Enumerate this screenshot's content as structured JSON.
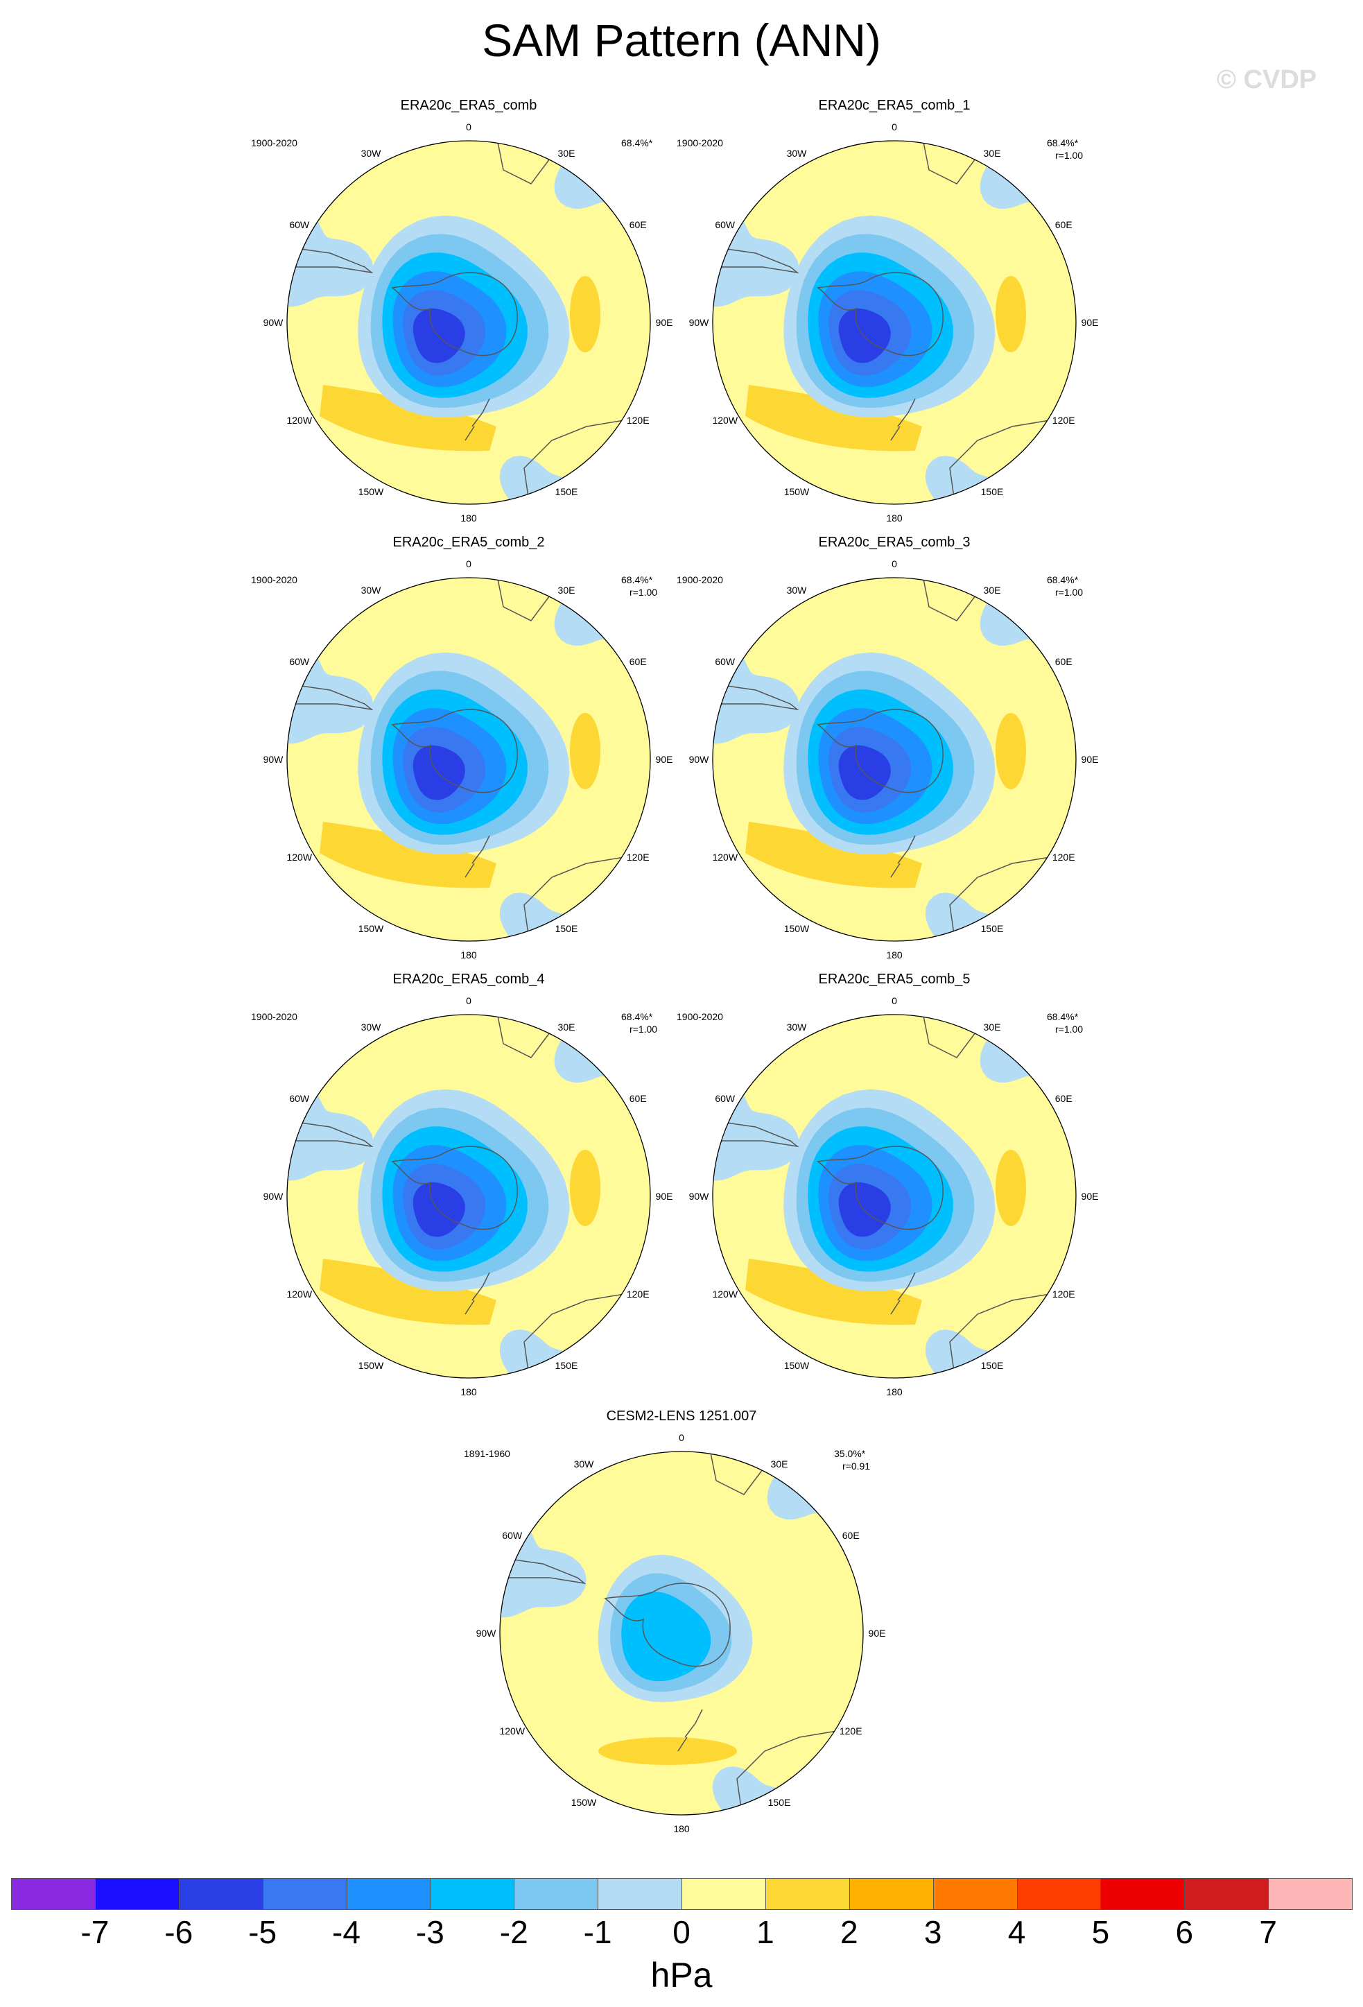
{
  "title": "SAM Pattern (ANN)",
  "watermark": "© CVDP",
  "colors": {
    "land": "#fffa9a",
    "ocean_light": "#b4dcf4",
    "pos1": "#fdd835",
    "neg": [
      "#b4dcf4",
      "#7cc8f0",
      "#00bfff",
      "#1e90ff",
      "#3878f0",
      "#2a3ee6"
    ]
  },
  "lon_labels": [
    "0",
    "30E",
    "60E",
    "90E",
    "120E",
    "150E",
    "180",
    "150W",
    "120W",
    "90W",
    "60W",
    "30W"
  ],
  "panels": [
    {
      "title": "ERA20c_ERA5_comb",
      "years": "1900-2020",
      "pct": "68.4%*",
      "r": "",
      "min_contour": -6
    },
    {
      "title": "ERA20c_ERA5_comb_1",
      "years": "1900-2020",
      "pct": "68.4%*",
      "r": "r=1.00",
      "min_contour": -6
    },
    {
      "title": "ERA20c_ERA5_comb_2",
      "years": "1900-2020",
      "pct": "68.4%*",
      "r": "r=1.00",
      "min_contour": -6
    },
    {
      "title": "ERA20c_ERA5_comb_3",
      "years": "1900-2020",
      "pct": "68.4%*",
      "r": "r=1.00",
      "min_contour": -6
    },
    {
      "title": "ERA20c_ERA5_comb_4",
      "years": "1900-2020",
      "pct": "68.4%*",
      "r": "r=1.00",
      "min_contour": -6
    },
    {
      "title": "ERA20c_ERA5_comb_5",
      "years": "1900-2020",
      "pct": "68.4%*",
      "r": "r=1.00",
      "min_contour": -6
    },
    {
      "title": "CESM2-LENS 1251.007",
      "years": "1891-1960",
      "pct": "35.0%*",
      "r": "r=0.91",
      "min_contour": -3
    }
  ],
  "colorbar": {
    "colors": [
      "#8a2be2",
      "#1a10ff",
      "#2a3ee6",
      "#3878f0",
      "#1e90ff",
      "#00bfff",
      "#7cc8f0",
      "#b4dcf4",
      "#fffa9a",
      "#fdd835",
      "#ffb000",
      "#ff7a00",
      "#ff3d00",
      "#ee0000",
      "#d01c1c",
      "#ffb6b6"
    ],
    "labels": [
      "-7",
      "-6",
      "-5",
      "-4",
      "-3",
      "-2",
      "-1",
      "0",
      "1",
      "2",
      "3",
      "4",
      "5",
      "6",
      "7"
    ],
    "units": "hPa"
  }
}
